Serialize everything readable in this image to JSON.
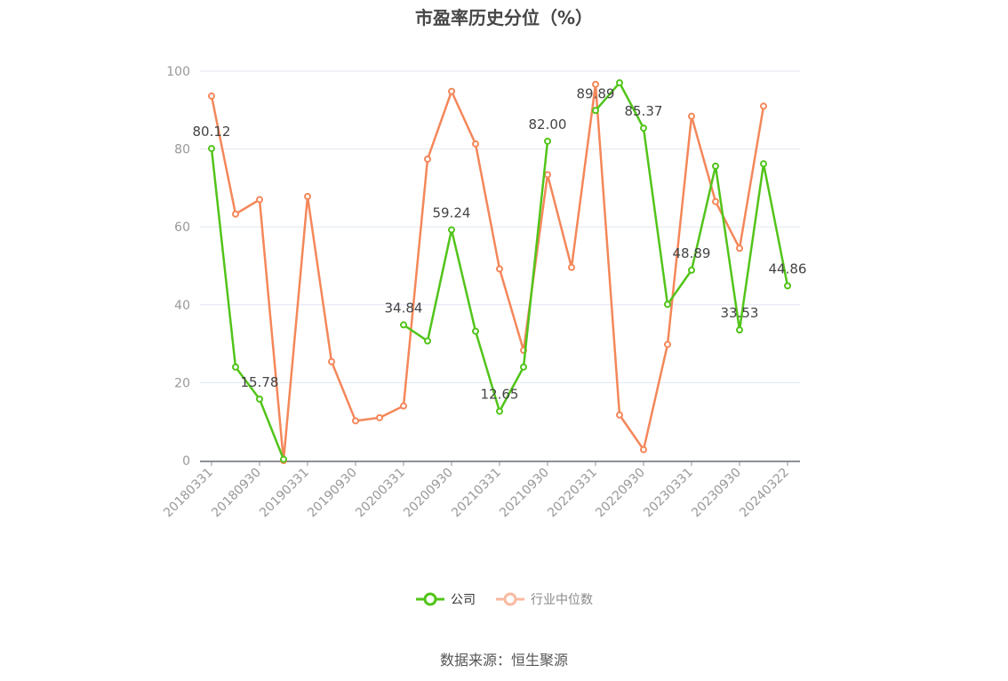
{
  "title": "市盈率历史分位（%）",
  "source": "数据来源：恒生聚源",
  "legend": {
    "company": "公司",
    "industry": "行业中位数"
  },
  "colors": {
    "company": "#52c41a",
    "industry": "#f4875a",
    "industry_legend": "#f9b9a0",
    "grid": "#e0e6f1",
    "axis": "#8c8f99",
    "tick_label": "#999999",
    "data_label": "#444444"
  },
  "chart_data": {
    "type": "line",
    "title": "市盈率历史分位（%）",
    "xlabel": "",
    "ylabel": "",
    "ylim": [
      0,
      100
    ],
    "yticks": [
      0,
      20,
      40,
      60,
      80,
      100
    ],
    "grid": true,
    "legend_position": "bottom",
    "x": [
      "20180331",
      "20180630",
      "20180930",
      "20181231",
      "20190331",
      "20190630",
      "20190930",
      "20191231",
      "20200331",
      "20200630",
      "20200930",
      "20201231",
      "20210331",
      "20210630",
      "20210930",
      "20211231",
      "20220331",
      "20220630",
      "20220930",
      "20221231",
      "20230331",
      "20230630",
      "20230930",
      "20231231",
      "20240322"
    ],
    "xtick_labels_shown": [
      "20180331",
      "20180930",
      "20190331",
      "20190930",
      "20200331",
      "20200930",
      "20210331",
      "20210930",
      "20220331",
      "20220930",
      "20230331",
      "20230930",
      "20240322"
    ],
    "series": [
      {
        "name": "公司",
        "values": [
          80.12,
          24.0,
          15.78,
          0.3,
          null,
          null,
          null,
          null,
          34.84,
          30.7,
          59.24,
          33.2,
          12.65,
          24.0,
          82.0,
          null,
          89.89,
          97.0,
          85.37,
          40.1,
          48.89,
          75.6,
          33.53,
          76.2,
          44.86
        ],
        "labels": {
          "0": "80.12",
          "2": "15.78",
          "8": "34.84",
          "10": "59.24",
          "12": "12.65",
          "14": "82.00",
          "16": "89.89",
          "18": "85.37",
          "20": "48.89",
          "22": "33.53",
          "24": "44.86"
        }
      },
      {
        "name": "行业中位数",
        "values": [
          93.6,
          63.3,
          67.0,
          0.0,
          67.8,
          25.4,
          10.2,
          11.0,
          14.0,
          77.4,
          94.8,
          81.3,
          49.2,
          28.3,
          73.4,
          49.6,
          96.6,
          11.7,
          2.8,
          29.8,
          88.4,
          66.5,
          54.5,
          91.0,
          null
        ]
      }
    ]
  }
}
